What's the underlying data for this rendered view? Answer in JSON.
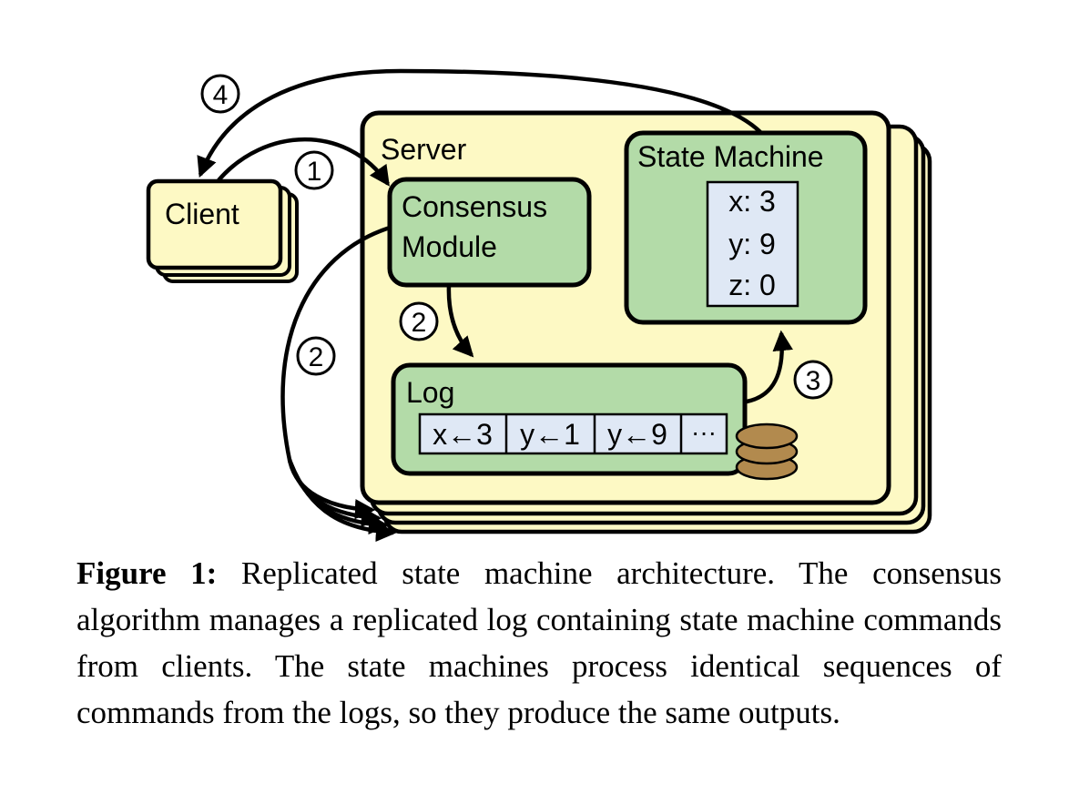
{
  "diagram": {
    "client_label": "Client",
    "server_label": "Server",
    "consensus_line1": "Consensus",
    "consensus_line2": "Module",
    "state_machine_label": "State Machine",
    "state_vars": [
      "x: 3",
      "y: 9",
      "z: 0"
    ],
    "log_label": "Log",
    "log_entries": [
      "x←3",
      "y←1",
      "y←9",
      "···"
    ],
    "steps": [
      "1",
      "2",
      "2",
      "3",
      "4"
    ],
    "colors": {
      "outline": "#000000",
      "client_fill": "#fdf9c4",
      "server_fill": "#fdf9c4",
      "module_fill": "#b3dba8",
      "cell_fill": "#dfe8f5",
      "disk_fill": "#b28a4e"
    }
  },
  "caption": {
    "label": "Figure 1:",
    "text": "Replicated state machine architecture. The consensus algorithm manages a replicated log containing state machine commands from clients. The state machines process identical sequences of commands from the logs, so they produce the same outputs."
  }
}
